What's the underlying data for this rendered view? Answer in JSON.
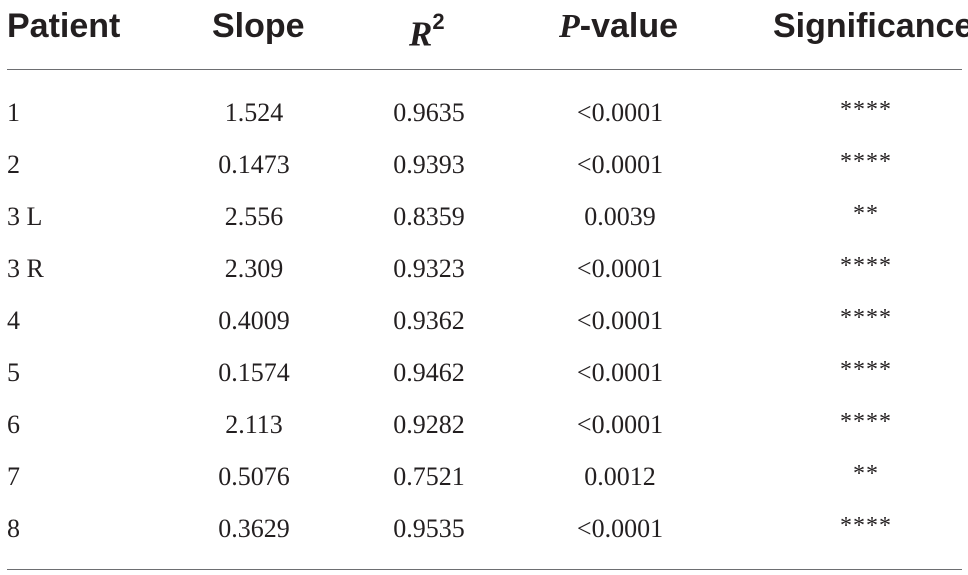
{
  "table": {
    "headers": {
      "patient": "Patient",
      "slope": "Slope",
      "r2_main": "R",
      "r2_sup": "2",
      "pvalue_italic": "P",
      "pvalue_rest": "-value",
      "significance": "Significance"
    },
    "rows": [
      {
        "patient": "1",
        "slope": "1.524",
        "r2": "0.9635",
        "pvalue": "<0.0001",
        "significance": "****"
      },
      {
        "patient": "2",
        "slope": "0.1473",
        "r2": "0.9393",
        "pvalue": "<0.0001",
        "significance": "****"
      },
      {
        "patient": "3 L",
        "slope": "2.556",
        "r2": "0.8359",
        "pvalue": "0.0039",
        "significance": "**"
      },
      {
        "patient": "3 R",
        "slope": "2.309",
        "r2": "0.9323",
        "pvalue": "<0.0001",
        "significance": "****"
      },
      {
        "patient": "4",
        "slope": "0.4009",
        "r2": "0.9362",
        "pvalue": "<0.0001",
        "significance": "****"
      },
      {
        "patient": "5",
        "slope": "0.1574",
        "r2": "0.9462",
        "pvalue": "<0.0001",
        "significance": "****"
      },
      {
        "patient": "6",
        "slope": "2.113",
        "r2": "0.9282",
        "pvalue": "<0.0001",
        "significance": "****"
      },
      {
        "patient": "7",
        "slope": "0.5076",
        "r2": "0.7521",
        "pvalue": "0.0012",
        "significance": "**"
      },
      {
        "patient": "8",
        "slope": "0.3629",
        "r2": "0.9535",
        "pvalue": "<0.0001",
        "significance": "****"
      }
    ]
  }
}
